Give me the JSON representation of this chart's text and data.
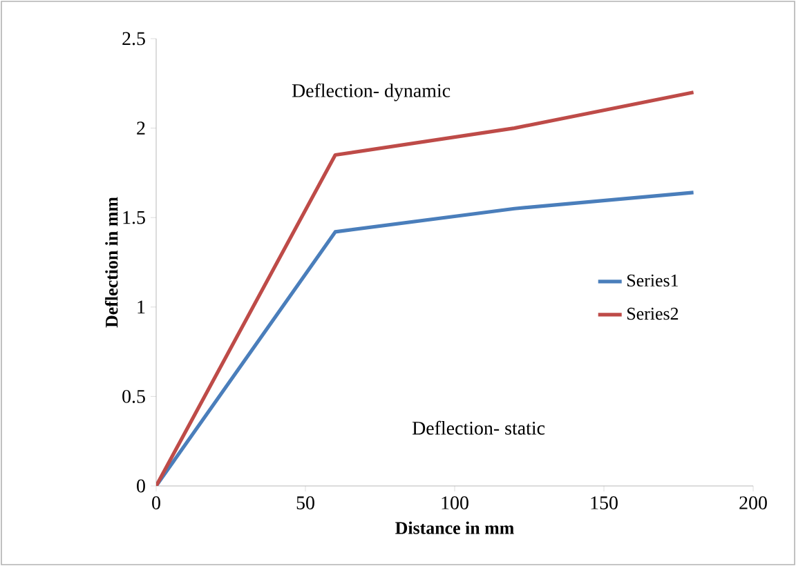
{
  "chart_data": {
    "type": "line",
    "xlabel": "Distance in mm",
    "ylabel": "Deflection in mm",
    "annotations": [
      "Deflection- dynamic",
      "Deflection- static"
    ],
    "series": [
      {
        "name": "Series1",
        "color": "#4a7ebb",
        "x": [
          0,
          60,
          120,
          180
        ],
        "values": [
          0,
          1.42,
          1.55,
          1.64
        ]
      },
      {
        "name": "Series2",
        "color": "#be4b48",
        "x": [
          0,
          60,
          120,
          180
        ],
        "values": [
          0,
          1.85,
          2.0,
          2.2
        ]
      }
    ],
    "xlim": [
      0,
      200
    ],
    "xticks": [
      0,
      50,
      100,
      150,
      200
    ],
    "ylim": [
      0,
      2.5
    ],
    "yticks": [
      0,
      0.5,
      1,
      1.5,
      2,
      2.5
    ],
    "legend": "right",
    "marker": "none",
    "line_style": "solid",
    "grid": false
  }
}
